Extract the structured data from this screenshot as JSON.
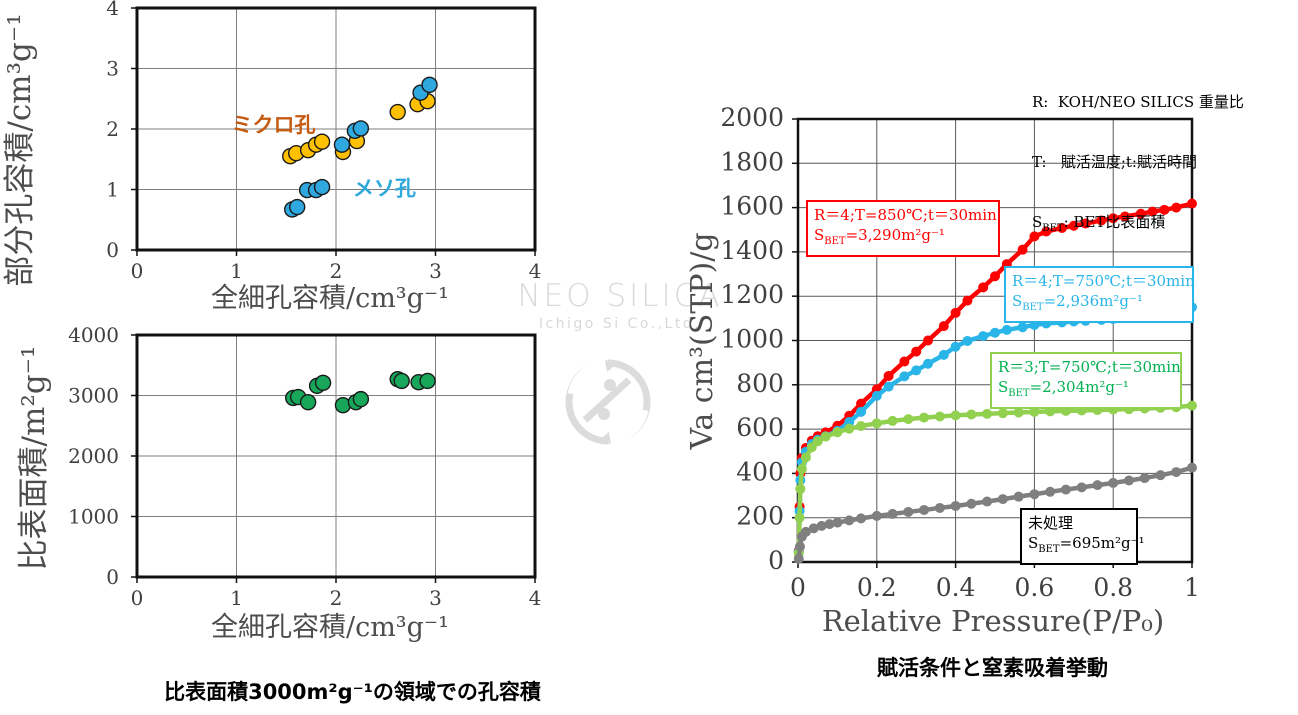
{
  "watermark": {
    "line1": "NEO SILICA",
    "line2": "Ichigo Si Co.,Ltd.",
    "logo_icon": "ichigo-circle-logo"
  },
  "legend": {
    "line1": "R:  KOH/NEO SILICS 重量比",
    "line2": "T:   賦活温度;t:賦活時間",
    "line3_prefix": "S",
    "line3_sub": "BET",
    "line3_rest": ": BET比表面積"
  },
  "captions": {
    "left": "比表面積3000m²g⁻¹の領域での孔容積",
    "right": "賦活条件と窒素吸着挙動"
  },
  "right_chart": {
    "annotations": [
      {
        "line1": "R＝4;T=850℃;t＝30min",
        "s_prefix": "S",
        "s_sub": "BET",
        "s_rest": "=3,290m²g⁻¹"
      },
      {
        "line1": "R＝4;T=750℃;t＝30min",
        "s_prefix": "S",
        "s_sub": "BET",
        "s_rest": "=2,936m²g⁻¹"
      },
      {
        "line1": "R＝3;T=750℃;t＝30min",
        "s_prefix": "S",
        "s_sub": "BET",
        "s_rest": "=2,304m²g⁻¹"
      },
      {
        "line1": "未処理",
        "s_prefix": "S",
        "s_sub": "BET",
        "s_rest": "=695m²g⁻¹"
      }
    ]
  },
  "chart_data": [
    {
      "type": "scatter",
      "title": "",
      "xlabel": "全細孔容積/cm³g⁻¹",
      "ylabel": "部分孔容積/cm³g⁻¹",
      "xlim": [
        0,
        4
      ],
      "ylim": [
        0,
        4
      ],
      "xticks": [
        0,
        1,
        2,
        3,
        4
      ],
      "yticks": [
        0,
        1,
        2,
        3,
        4
      ],
      "grid": true,
      "labels": [
        {
          "text": "ミクロ孔",
          "x": 0.95,
          "y": 1.95,
          "color": "#c55a11"
        },
        {
          "text": "メソ孔",
          "x": 2.17,
          "y": 0.9,
          "color": "#2fa8dc"
        }
      ],
      "series": [
        {
          "name": "ミクロ孔",
          "color": "#ffc000",
          "points": [
            [
              1.54,
              1.55
            ],
            [
              1.6,
              1.6
            ],
            [
              1.72,
              1.65
            ],
            [
              1.8,
              1.74
            ],
            [
              1.86,
              1.79
            ],
            [
              2.07,
              1.62
            ],
            [
              2.21,
              1.8
            ],
            [
              2.62,
              2.28
            ],
            [
              2.82,
              2.41
            ],
            [
              2.92,
              2.46
            ]
          ]
        },
        {
          "name": "メソ孔",
          "color": "#2ea8df",
          "points": [
            [
              1.56,
              0.67
            ],
            [
              1.61,
              0.71
            ],
            [
              1.71,
              0.99
            ],
            [
              1.8,
              0.99
            ],
            [
              1.86,
              1.04
            ],
            [
              2.06,
              1.74
            ],
            [
              2.19,
              1.97
            ],
            [
              2.25,
              2.01
            ],
            [
              2.85,
              2.6
            ],
            [
              2.94,
              2.73
            ]
          ]
        }
      ]
    },
    {
      "type": "scatter",
      "title": "",
      "xlabel": "全細孔容積/cm³g⁻¹",
      "ylabel": "比表面積/m²g⁻¹",
      "xlim": [
        0,
        4
      ],
      "ylim": [
        0,
        4000
      ],
      "xticks": [
        0,
        1,
        2,
        3,
        4
      ],
      "yticks": [
        0,
        1000,
        2000,
        3000,
        4000
      ],
      "grid": true,
      "labels": [],
      "series": [
        {
          "name": "比表面積",
          "color": "#17a65a",
          "points": [
            [
              1.57,
              2960
            ],
            [
              1.62,
              2975
            ],
            [
              1.72,
              2890
            ],
            [
              1.81,
              3160
            ],
            [
              1.87,
              3210
            ],
            [
              2.07,
              2840
            ],
            [
              2.2,
              2890
            ],
            [
              2.25,
              2940
            ],
            [
              2.62,
              3270
            ],
            [
              2.66,
              3240
            ],
            [
              2.83,
              3220
            ],
            [
              2.92,
              3240
            ]
          ]
        }
      ]
    },
    {
      "type": "line",
      "title": "賦活条件と窒素吸着挙動",
      "xlabel": "Relative Pressure(P/P₀)",
      "ylabel": "Va  cm³(STP)/g",
      "xlim": [
        0,
        1
      ],
      "ylim": [
        0,
        2000
      ],
      "xticks": [
        0,
        0.2,
        0.4,
        0.6,
        0.8,
        1
      ],
      "yticks": [
        0,
        200,
        400,
        600,
        800,
        1000,
        1200,
        1400,
        1600,
        1800,
        2000
      ],
      "grid": true,
      "labels": [],
      "series": [
        {
          "name": "R＝4;T=850℃;t＝30min",
          "sbet": "3,290m²g⁻¹",
          "color": "#ff0000",
          "points": [
            [
              0.002,
              50
            ],
            [
              0.004,
              250
            ],
            [
              0.006,
              400
            ],
            [
              0.01,
              470
            ],
            [
              0.02,
              515
            ],
            [
              0.035,
              548
            ],
            [
              0.05,
              568
            ],
            [
              0.07,
              585
            ],
            [
              0.1,
              615
            ],
            [
              0.13,
              660
            ],
            [
              0.16,
              715
            ],
            [
              0.2,
              780
            ],
            [
              0.23,
              840
            ],
            [
              0.27,
              905
            ],
            [
              0.3,
              950
            ],
            [
              0.33,
              1000
            ],
            [
              0.37,
              1065
            ],
            [
              0.4,
              1125
            ],
            [
              0.43,
              1180
            ],
            [
              0.47,
              1240
            ],
            [
              0.5,
              1290
            ],
            [
              0.53,
              1345
            ],
            [
              0.57,
              1410
            ],
            [
              0.6,
              1470
            ],
            [
              0.63,
              1492
            ],
            [
              0.67,
              1508
            ],
            [
              0.7,
              1518
            ],
            [
              0.73,
              1528
            ],
            [
              0.77,
              1542
            ],
            [
              0.8,
              1552
            ],
            [
              0.83,
              1560
            ],
            [
              0.87,
              1572
            ],
            [
              0.9,
              1582
            ],
            [
              0.93,
              1590
            ],
            [
              0.96,
              1600
            ],
            [
              1.0,
              1618
            ]
          ]
        },
        {
          "name": "R＝4;T=750℃;t＝30min",
          "sbet": "2,936m²g⁻¹",
          "color": "#29b5e8",
          "points": [
            [
              0.002,
              45
            ],
            [
              0.004,
              230
            ],
            [
              0.006,
              370
            ],
            [
              0.01,
              450
            ],
            [
              0.02,
              498
            ],
            [
              0.035,
              532
            ],
            [
              0.05,
              552
            ],
            [
              0.07,
              568
            ],
            [
              0.1,
              592
            ],
            [
              0.13,
              632
            ],
            [
              0.16,
              678
            ],
            [
              0.2,
              750
            ],
            [
              0.23,
              792
            ],
            [
              0.27,
              838
            ],
            [
              0.3,
              865
            ],
            [
              0.33,
              895
            ],
            [
              0.37,
              935
            ],
            [
              0.4,
              972
            ],
            [
              0.43,
              998
            ],
            [
              0.47,
              1020
            ],
            [
              0.5,
              1035
            ],
            [
              0.53,
              1048
            ],
            [
              0.57,
              1060
            ],
            [
              0.6,
              1070
            ],
            [
              0.63,
              1077
            ],
            [
              0.67,
              1082
            ],
            [
              0.7,
              1086
            ],
            [
              0.73,
              1089
            ],
            [
              0.77,
              1093
            ],
            [
              0.8,
              1097
            ],
            [
              0.83,
              1103
            ],
            [
              0.87,
              1110
            ],
            [
              0.9,
              1118
            ],
            [
              0.93,
              1127
            ],
            [
              0.96,
              1136
            ],
            [
              1.0,
              1150
            ]
          ]
        },
        {
          "name": "R＝3;T=750℃;t＝30min",
          "sbet": "2,304m²g⁻¹",
          "color": "#92d050",
          "points": [
            [
              0.002,
              40
            ],
            [
              0.004,
              200
            ],
            [
              0.006,
              330
            ],
            [
              0.01,
              420
            ],
            [
              0.02,
              472
            ],
            [
              0.035,
              518
            ],
            [
              0.05,
              545
            ],
            [
              0.07,
              566
            ],
            [
              0.1,
              586
            ],
            [
              0.13,
              602
            ],
            [
              0.16,
              614
            ],
            [
              0.2,
              626
            ],
            [
              0.24,
              637
            ],
            [
              0.28,
              645
            ],
            [
              0.32,
              652
            ],
            [
              0.36,
              657
            ],
            [
              0.4,
              662
            ],
            [
              0.44,
              666
            ],
            [
              0.48,
              669
            ],
            [
              0.52,
              672
            ],
            [
              0.56,
              675
            ],
            [
              0.6,
              678
            ],
            [
              0.64,
              680
            ],
            [
              0.68,
              682
            ],
            [
              0.72,
              684
            ],
            [
              0.76,
              686
            ],
            [
              0.8,
              688
            ],
            [
              0.84,
              690
            ],
            [
              0.88,
              693
            ],
            [
              0.92,
              696
            ],
            [
              0.96,
              699
            ],
            [
              1.0,
              706
            ]
          ]
        },
        {
          "name": "未処理",
          "sbet": "695m²g⁻¹",
          "color": "#7f7f7f",
          "points": [
            [
              0.002,
              15
            ],
            [
              0.005,
              70
            ],
            [
              0.01,
              115
            ],
            [
              0.02,
              136
            ],
            [
              0.04,
              152
            ],
            [
              0.06,
              163
            ],
            [
              0.08,
              171
            ],
            [
              0.1,
              178
            ],
            [
              0.13,
              188
            ],
            [
              0.16,
              197
            ],
            [
              0.2,
              208
            ],
            [
              0.24,
              217
            ],
            [
              0.28,
              226
            ],
            [
              0.32,
              235
            ],
            [
              0.36,
              244
            ],
            [
              0.4,
              253
            ],
            [
              0.44,
              263
            ],
            [
              0.48,
              273
            ],
            [
              0.52,
              284
            ],
            [
              0.56,
              295
            ],
            [
              0.6,
              306
            ],
            [
              0.64,
              317
            ],
            [
              0.68,
              327
            ],
            [
              0.72,
              337
            ],
            [
              0.76,
              347
            ],
            [
              0.8,
              357
            ],
            [
              0.84,
              368
            ],
            [
              0.88,
              379
            ],
            [
              0.92,
              392
            ],
            [
              0.96,
              406
            ],
            [
              1.0,
              426
            ]
          ]
        }
      ]
    }
  ]
}
